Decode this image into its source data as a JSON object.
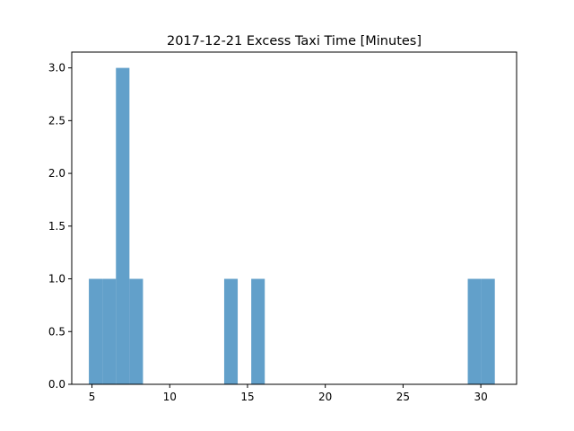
{
  "chart_data": {
    "type": "bar",
    "title": "2017-12-21 Excess Taxi Time [Minutes]",
    "xlabel": "",
    "ylabel": "",
    "xlim": [
      3.7,
      32.3
    ],
    "ylim": [
      0,
      3.15
    ],
    "x_ticks": [
      5,
      10,
      15,
      20,
      25,
      30
    ],
    "x_tick_labels": [
      "5",
      "10",
      "15",
      "20",
      "25",
      "30"
    ],
    "y_ticks": [
      0,
      0.5,
      1.0,
      1.5,
      2.0,
      2.5,
      3.0
    ],
    "y_tick_labels": [
      "0.0",
      "0.5",
      "1.0",
      "1.5",
      "2.0",
      "2.5",
      "3.0"
    ],
    "bar_color": "#1f77b4",
    "bar_opacity": 0.7,
    "bins": [
      {
        "x0": 4.8,
        "x1": 5.67,
        "count": 1
      },
      {
        "x0": 5.67,
        "x1": 6.54,
        "count": 1
      },
      {
        "x0": 6.54,
        "x1": 7.41,
        "count": 3
      },
      {
        "x0": 7.41,
        "x1": 8.28,
        "count": 1
      },
      {
        "x0": 13.5,
        "x1": 14.37,
        "count": 1
      },
      {
        "x0": 15.24,
        "x1": 16.11,
        "count": 1
      },
      {
        "x0": 29.16,
        "x1": 30.03,
        "count": 1
      },
      {
        "x0": 30.03,
        "x1": 30.9,
        "count": 1
      }
    ]
  }
}
